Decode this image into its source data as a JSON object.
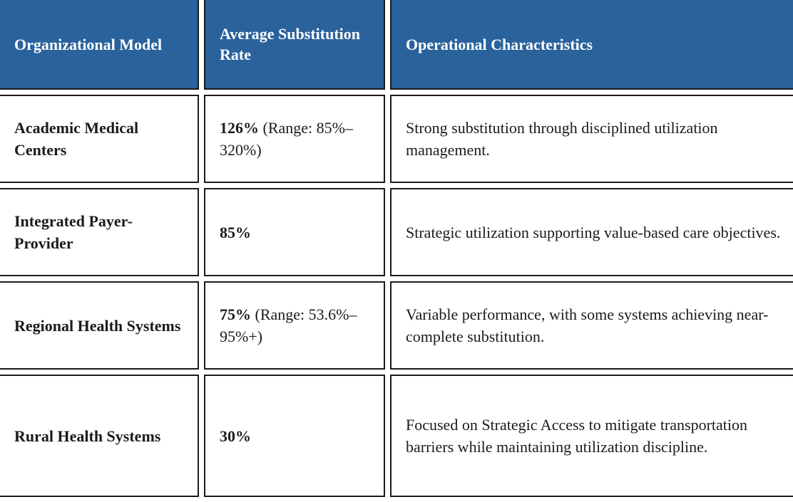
{
  "colors": {
    "header_bg": "#2A629C",
    "header_text": "#FFFFFF",
    "body_text": "#1B1B1B",
    "border": "#1B1B1B",
    "cell_bg": "#FFFFFF"
  },
  "table": {
    "columns": [
      {
        "label": "Organizational Model"
      },
      {
        "label": "Average Substitution Rate"
      },
      {
        "label": "Operational Characteristics"
      }
    ],
    "rows": [
      {
        "model": "Academic Medical Centers",
        "rate_bold": "126%",
        "rate_rest": " (Range: 85%–320%)",
        "characteristics": "Strong substitution through disciplined utilization management."
      },
      {
        "model": "Integrated Payer-Provider",
        "rate_bold": "85%",
        "rate_rest": "",
        "characteristics": "Strategic utilization supporting value-based care objectives."
      },
      {
        "model": "Regional Health Systems",
        "rate_bold": "75%",
        "rate_rest": " (Range: 53.6%–95%+)",
        "characteristics": "Variable performance, with some systems achieving near-complete substitution."
      },
      {
        "model": "Rural Health Systems",
        "rate_bold": "30%",
        "rate_rest": "",
        "characteristics": "Focused on Strategic Access to mitigate transportation barriers while maintaining utilization discipline."
      }
    ]
  }
}
